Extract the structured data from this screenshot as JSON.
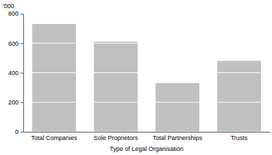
{
  "chart_data": {
    "type": "bar",
    "y_label": "'000",
    "x_label": "Type of Legal Organisation",
    "categories": [
      "Total Companies",
      "Sole Proprietors",
      "Total Partnerships",
      "Trusts"
    ],
    "values": [
      730,
      610,
      330,
      480
    ],
    "color": "#c0c0c0",
    "ylim": [
      0,
      800
    ],
    "yticks": [
      0,
      200,
      400,
      600,
      800
    ],
    "grid": true
  }
}
